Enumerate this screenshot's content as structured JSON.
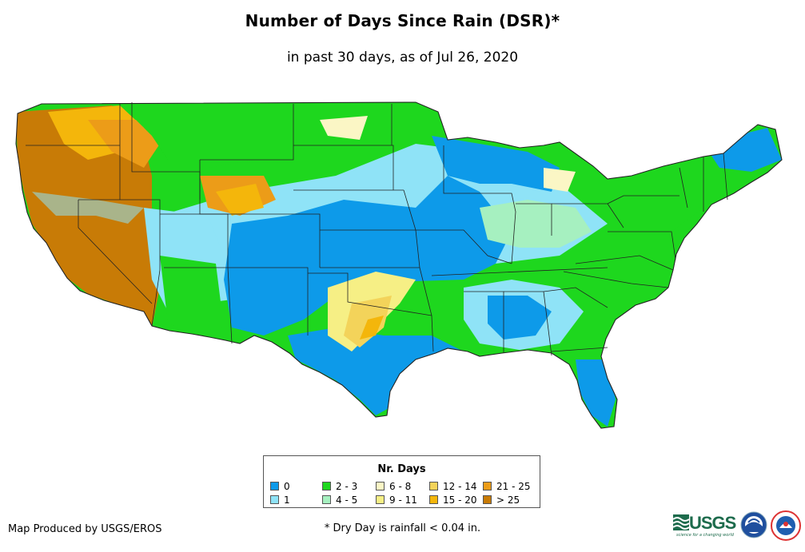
{
  "title": "Number of Days Since Rain (DSR)*",
  "subtitle": "in past 30 days, as of Jul 26, 2020",
  "legend": {
    "title": "Nr. Days",
    "items": [
      {
        "label": "0",
        "color": "#0d9ae9"
      },
      {
        "label": "1",
        "color": "#8fe3f7"
      },
      {
        "label": "2 - 3",
        "color": "#1ed71e"
      },
      {
        "label": "4 - 5",
        "color": "#a6f0c0"
      },
      {
        "label": "6 - 8",
        "color": "#fbf6c5"
      },
      {
        "label": "9 - 11",
        "color": "#f6ef85"
      },
      {
        "label": "12 - 14",
        "color": "#f3d35a"
      },
      {
        "label": "15 - 20",
        "color": "#f4b60b"
      },
      {
        "label": "21 - 25",
        "color": "#ec9c18"
      },
      {
        "label": "> 25",
        "color": "#c87b06"
      }
    ]
  },
  "credit": "Map Produced by USGS/EROS",
  "footnote": "* Dry Day is rainfall < 0.04 in.",
  "logos": {
    "usgs": "USGS",
    "usgs_tagline": "science for a changing world",
    "noaa": "noaa-logo",
    "nws": "nws-logo"
  }
}
